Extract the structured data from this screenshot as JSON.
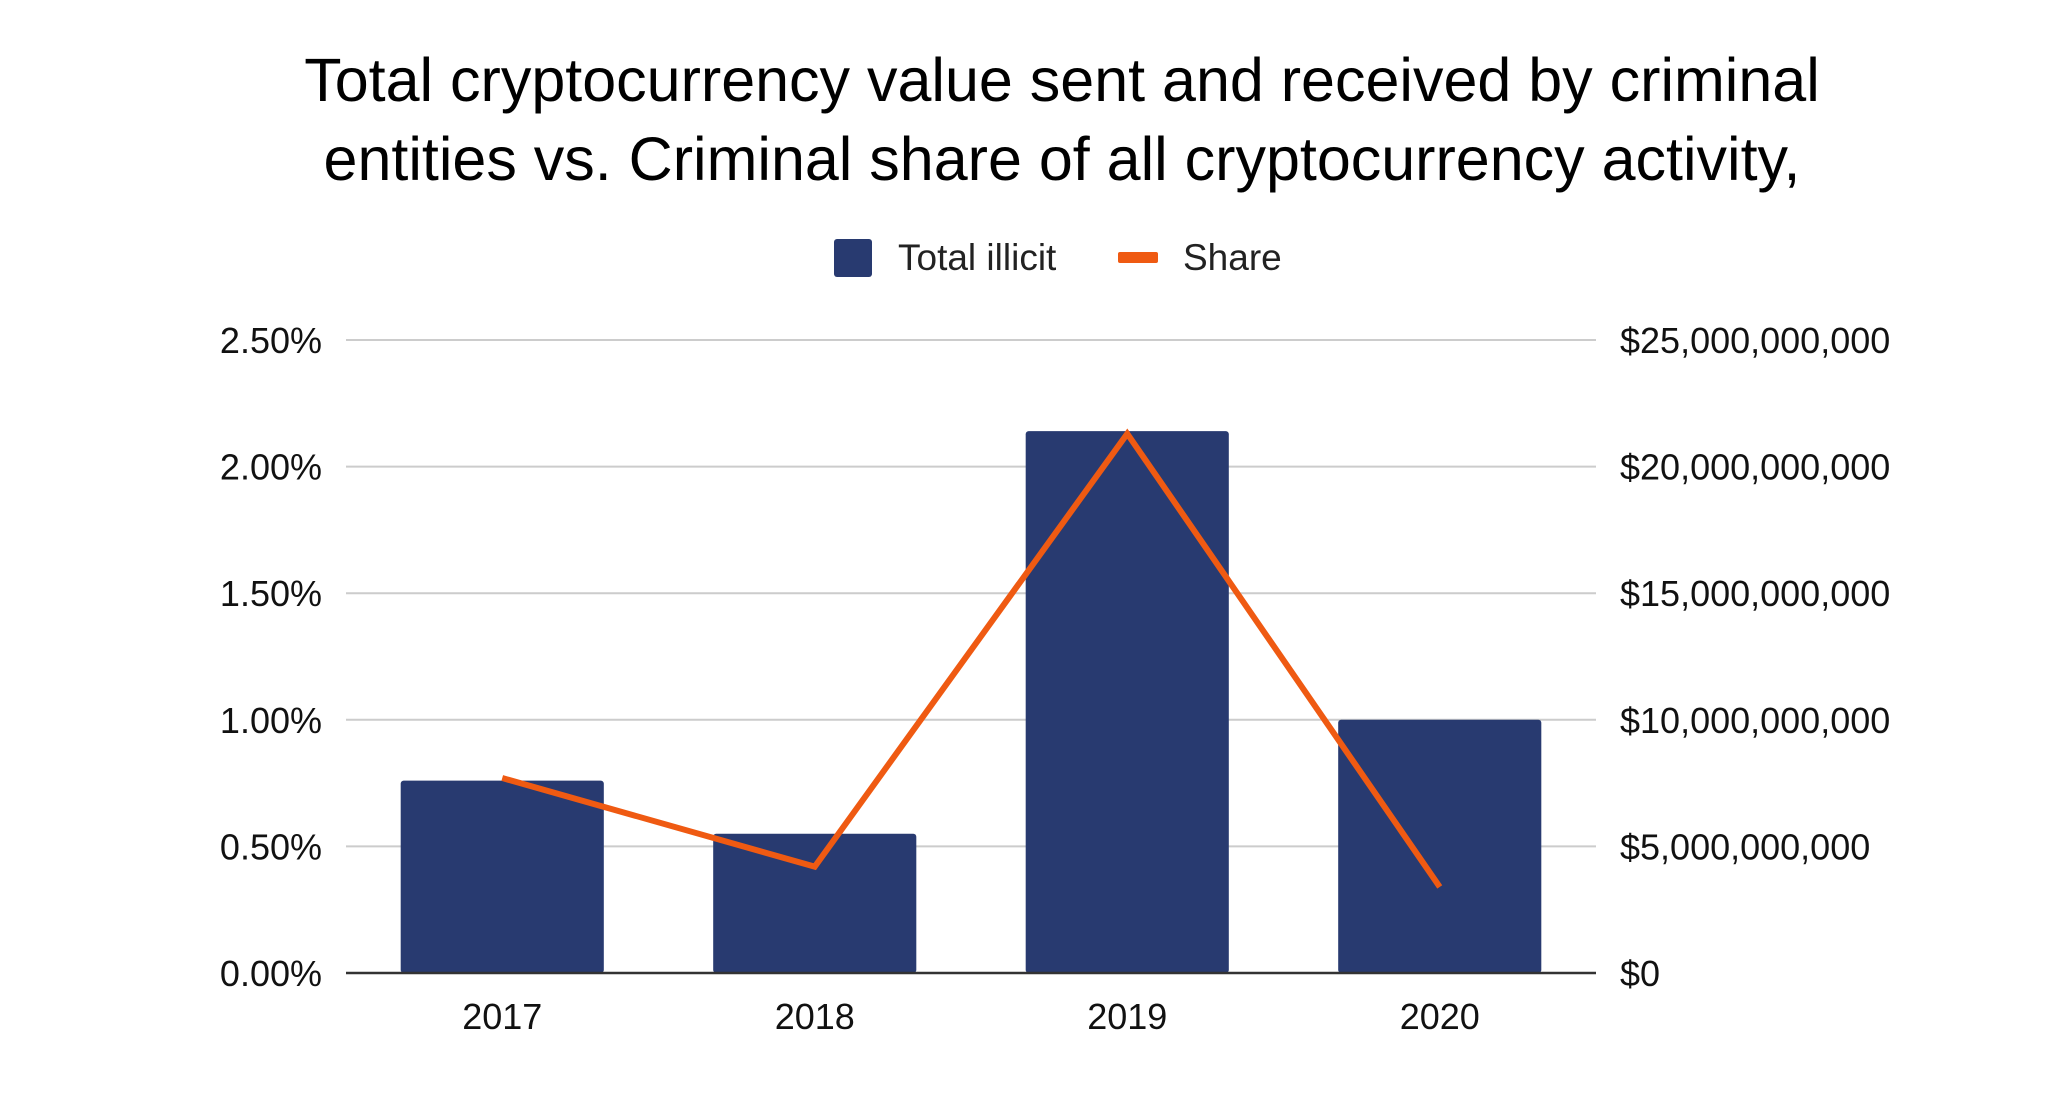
{
  "chart_data": {
    "type": "bar",
    "title_lines": [
      "Total cryptocurrency value sent and received by criminal",
      "entities vs. Criminal share of all cryptocurrency activity,"
    ],
    "categories": [
      "2017",
      "2018",
      "2019",
      "2020"
    ],
    "series": [
      {
        "name": "Total illicit",
        "type": "bar",
        "axis": "right",
        "color": "#283A70",
        "values": [
          7600000000,
          5500000000,
          21400000000,
          10000000000
        ]
      },
      {
        "name": "Share",
        "type": "line",
        "axis": "left",
        "color": "#EF5A12",
        "values": [
          0.77,
          0.42,
          2.13,
          0.34
        ]
      }
    ],
    "left_axis": {
      "ylim": [
        0,
        2.5
      ],
      "ticks": [
        0,
        0.5,
        1.0,
        1.5,
        2.0,
        2.5
      ],
      "tick_labels": [
        "0.00%",
        "0.50%",
        "1.00%",
        "1.50%",
        "2.00%",
        "2.50%"
      ]
    },
    "right_axis": {
      "ylim": [
        0,
        25000000000
      ],
      "ticks": [
        0,
        5000000000,
        10000000000,
        15000000000,
        20000000000,
        25000000000
      ],
      "tick_labels": [
        "$0",
        "$5,000,000,000",
        "$10,000,000,000",
        "$15,000,000,000",
        "$20,000,000,000",
        "$25,000,000,000"
      ]
    },
    "legend_position": "top-center",
    "grid": true,
    "gridline_color": "#CCCCCC",
    "baseline_color": "#333333"
  }
}
